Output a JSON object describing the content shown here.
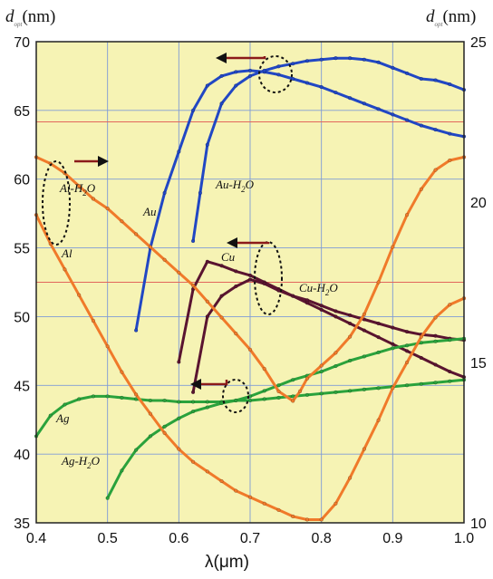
{
  "chart_data": {
    "type": "line",
    "title": "",
    "xlabel": "λ(μm)",
    "ylabel_left": "(nm)",
    "ylabel_left_symbol": "d",
    "ylabel_left_sub": "opt",
    "ylabel_right": "(nm)",
    "ylabel_right_symbol": "d",
    "ylabel_right_sub": "opt",
    "xlim": [
      0.4,
      1.0
    ],
    "ylim_left": [
      35,
      70
    ],
    "ylim_right": [
      10,
      25
    ],
    "x_ticks": [
      "0.4",
      "0.5",
      "0.6",
      "0.7",
      "0.8",
      "0.9",
      "1.0"
    ],
    "y_left_ticks": [
      "35",
      "40",
      "45",
      "50",
      "55",
      "60",
      "65",
      "70"
    ],
    "y_right_ticks": [
      "10",
      "15",
      "20",
      "25"
    ],
    "grid": true,
    "background": "#f6f3b4",
    "series": [
      {
        "name": "Au",
        "axis": "left",
        "color": "#2147c4",
        "x": [
          0.54,
          0.56,
          0.58,
          0.6,
          0.62,
          0.64,
          0.66,
          0.68,
          0.7,
          0.72,
          0.74,
          0.76,
          0.78,
          0.8,
          0.82,
          0.84,
          0.86,
          0.88,
          0.9,
          0.92,
          0.94,
          0.96,
          0.98,
          1.0
        ],
        "y": [
          49.0,
          55.0,
          59.0,
          62.0,
          65.0,
          66.8,
          67.5,
          67.8,
          67.9,
          67.8,
          67.6,
          67.3,
          67.0,
          66.7,
          66.3,
          65.9,
          65.5,
          65.1,
          64.7,
          64.3,
          63.9,
          63.6,
          63.3,
          63.1
        ]
      },
      {
        "name": "Au-H2O",
        "axis": "left",
        "color": "#2147c4",
        "x": [
          0.62,
          0.63,
          0.64,
          0.66,
          0.68,
          0.7,
          0.72,
          0.74,
          0.76,
          0.78,
          0.8,
          0.82,
          0.84,
          0.86,
          0.88,
          0.9,
          0.92,
          0.94,
          0.96,
          0.98,
          1.0
        ],
        "y": [
          55.5,
          59.0,
          62.5,
          65.5,
          66.8,
          67.5,
          67.9,
          68.2,
          68.4,
          68.6,
          68.7,
          68.8,
          68.8,
          68.7,
          68.5,
          68.1,
          67.7,
          67.3,
          67.2,
          66.9,
          66.5
        ]
      },
      {
        "name": "Cu",
        "axis": "left",
        "color": "#5a1430",
        "x": [
          0.6,
          0.62,
          0.64,
          0.66,
          0.68,
          0.7,
          0.72,
          0.74,
          0.76,
          0.78,
          0.8,
          0.82,
          0.84,
          0.86,
          0.88,
          0.9,
          0.92,
          0.94,
          0.96,
          0.98,
          1.0
        ],
        "y": [
          46.7,
          52.0,
          54.0,
          53.7,
          53.3,
          53.0,
          52.5,
          52.0,
          51.5,
          51.0,
          50.5,
          50.0,
          49.5,
          49.0,
          48.5,
          48.0,
          47.5,
          47.0,
          46.5,
          46.0,
          45.6
        ]
      },
      {
        "name": "Cu-H2O",
        "axis": "left",
        "color": "#5a1430",
        "x": [
          0.62,
          0.64,
          0.66,
          0.68,
          0.7,
          0.72,
          0.74,
          0.76,
          0.78,
          0.8,
          0.82,
          0.84,
          0.86,
          0.88,
          0.9,
          0.92,
          0.94,
          0.96,
          0.98,
          1.0
        ],
        "y": [
          44.5,
          50.0,
          51.5,
          52.2,
          52.7,
          52.4,
          51.9,
          51.5,
          51.2,
          50.8,
          50.4,
          50.1,
          49.8,
          49.5,
          49.2,
          48.9,
          48.7,
          48.6,
          48.4,
          48.3
        ]
      },
      {
        "name": "Ag",
        "axis": "left",
        "color": "#2aa23c",
        "x": [
          0.4,
          0.42,
          0.44,
          0.46,
          0.48,
          0.5,
          0.52,
          0.54,
          0.56,
          0.58,
          0.6,
          0.62,
          0.64,
          0.66,
          0.68,
          0.7,
          0.72,
          0.74,
          0.76,
          0.78,
          0.8,
          0.82,
          0.84,
          0.86,
          0.88,
          0.9,
          0.92,
          0.94,
          0.96,
          0.98,
          1.0
        ],
        "y": [
          41.3,
          42.8,
          43.6,
          44.0,
          44.2,
          44.2,
          44.1,
          44.0,
          43.9,
          43.9,
          43.8,
          43.8,
          43.8,
          43.8,
          43.9,
          43.9,
          44.0,
          44.1,
          44.2,
          44.3,
          44.4,
          44.5,
          44.6,
          44.7,
          44.8,
          44.9,
          45.0,
          45.1,
          45.2,
          45.3,
          45.4
        ]
      },
      {
        "name": "Ag-H2O",
        "axis": "left",
        "color": "#2aa23c",
        "x": [
          0.5,
          0.52,
          0.54,
          0.56,
          0.58,
          0.6,
          0.62,
          0.64,
          0.66,
          0.68,
          0.7,
          0.72,
          0.74,
          0.76,
          0.78,
          0.8,
          0.82,
          0.84,
          0.86,
          0.88,
          0.9,
          0.92,
          0.94,
          0.96,
          0.98,
          1.0
        ],
        "y": [
          36.8,
          38.8,
          40.3,
          41.3,
          42.0,
          42.6,
          43.1,
          43.4,
          43.7,
          43.9,
          44.2,
          44.6,
          45.0,
          45.4,
          45.7,
          46.0,
          46.4,
          46.8,
          47.1,
          47.4,
          47.7,
          47.9,
          48.1,
          48.2,
          48.3,
          48.4
        ]
      },
      {
        "name": "Al",
        "axis": "right",
        "color": "#f07a2a",
        "x": [
          0.4,
          0.42,
          0.44,
          0.46,
          0.48,
          0.5,
          0.52,
          0.54,
          0.56,
          0.58,
          0.6,
          0.62,
          0.64,
          0.66,
          0.68,
          0.7,
          0.72,
          0.74,
          0.76,
          0.78,
          0.8,
          0.82,
          0.84,
          0.86,
          0.88,
          0.9,
          0.92,
          0.94,
          0.96,
          0.98,
          1.0
        ],
        "y": [
          19.6,
          18.7,
          17.9,
          17.1,
          16.3,
          15.5,
          14.7,
          14.0,
          13.4,
          12.8,
          12.3,
          11.9,
          11.6,
          11.3,
          11.0,
          10.8,
          10.6,
          10.4,
          10.2,
          10.1,
          10.1,
          10.6,
          11.4,
          12.3,
          13.2,
          14.2,
          15.0,
          15.8,
          16.4,
          16.8,
          17.0
        ]
      },
      {
        "name": "Al-H2O",
        "axis": "right",
        "color": "#f07a2a",
        "x": [
          0.4,
          0.42,
          0.44,
          0.46,
          0.48,
          0.5,
          0.52,
          0.54,
          0.56,
          0.58,
          0.6,
          0.62,
          0.64,
          0.66,
          0.68,
          0.7,
          0.72,
          0.74,
          0.76,
          0.77,
          0.78,
          0.8,
          0.82,
          0.84,
          0.86,
          0.88,
          0.9,
          0.92,
          0.94,
          0.96,
          0.98,
          1.0
        ],
        "y": [
          21.4,
          21.2,
          20.9,
          20.5,
          20.1,
          19.8,
          19.4,
          19.0,
          18.6,
          18.2,
          17.8,
          17.4,
          16.9,
          16.4,
          15.9,
          15.4,
          14.8,
          14.1,
          13.8,
          14.1,
          14.5,
          14.9,
          15.3,
          15.8,
          16.5,
          17.5,
          18.6,
          19.6,
          20.4,
          21.0,
          21.3,
          21.4
        ]
      }
    ],
    "annotations": [
      {
        "text": "Au",
        "series": "Au"
      },
      {
        "text": "Au-H",
        "sub": "2",
        "tail": "O",
        "series": "Au-H2O"
      },
      {
        "text": "Al-H",
        "sub": "2",
        "tail": "O",
        "series": "Al-H2O"
      },
      {
        "text": "Al",
        "series": "Al"
      },
      {
        "text": "Cu",
        "series": "Cu"
      },
      {
        "text": "Cu-H",
        "sub": "2",
        "tail": "O",
        "series": "Cu-H2O"
      },
      {
        "text": "Ag",
        "series": "Ag"
      },
      {
        "text": "Ag-H",
        "sub": "2",
        "tail": "O",
        "series": "Ag-H2O"
      }
    ]
  }
}
